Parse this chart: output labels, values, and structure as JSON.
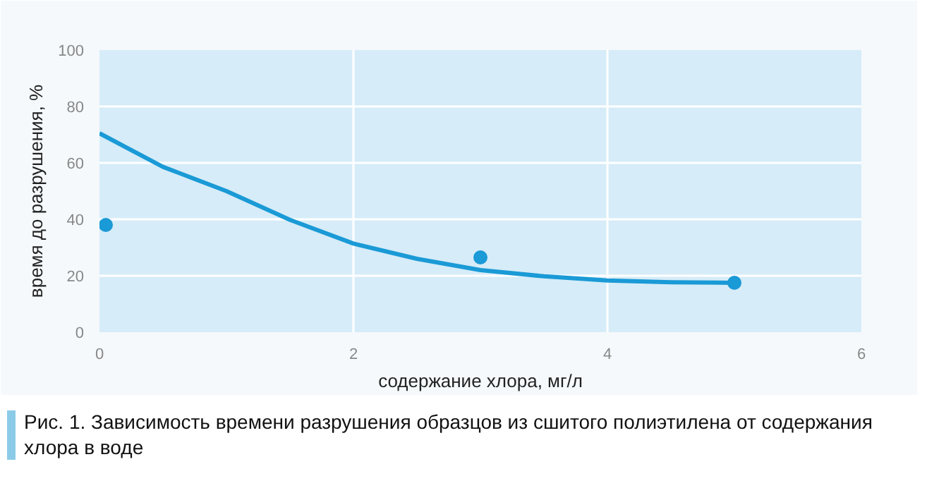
{
  "chart_data": {
    "type": "scatter",
    "xlabel": "содержание хлора, мг/л",
    "ylabel": "время до разрушения, %",
    "xlim": [
      0,
      6
    ],
    "xticks": [
      0,
      2,
      4,
      6
    ],
    "ylim": [
      0,
      100
    ],
    "yticks": [
      0,
      20,
      40,
      60,
      80,
      100
    ],
    "grid": true,
    "annotations": [
      "Рис. 1. Зависимость времени разрушения образцов из сшитого полиэтилена от содержания хлора в воде"
    ],
    "series": [
      {
        "color": "#1a9ad6",
        "marker": "circle",
        "x": [
          0.05,
          3.0,
          5.0
        ],
        "values": [
          38,
          26.5,
          17.5
        ]
      },
      {
        "type": "line",
        "color": "#1a9ad6",
        "marker": "none",
        "x": [
          0,
          0.5,
          1,
          1.5,
          2,
          2.5,
          3,
          3.5,
          4,
          4.5,
          5
        ],
        "values": [
          70.5,
          58.6,
          50,
          39.8,
          31.4,
          26,
          22,
          19.8,
          18.3,
          17.7,
          17.5
        ]
      }
    ]
  }
}
